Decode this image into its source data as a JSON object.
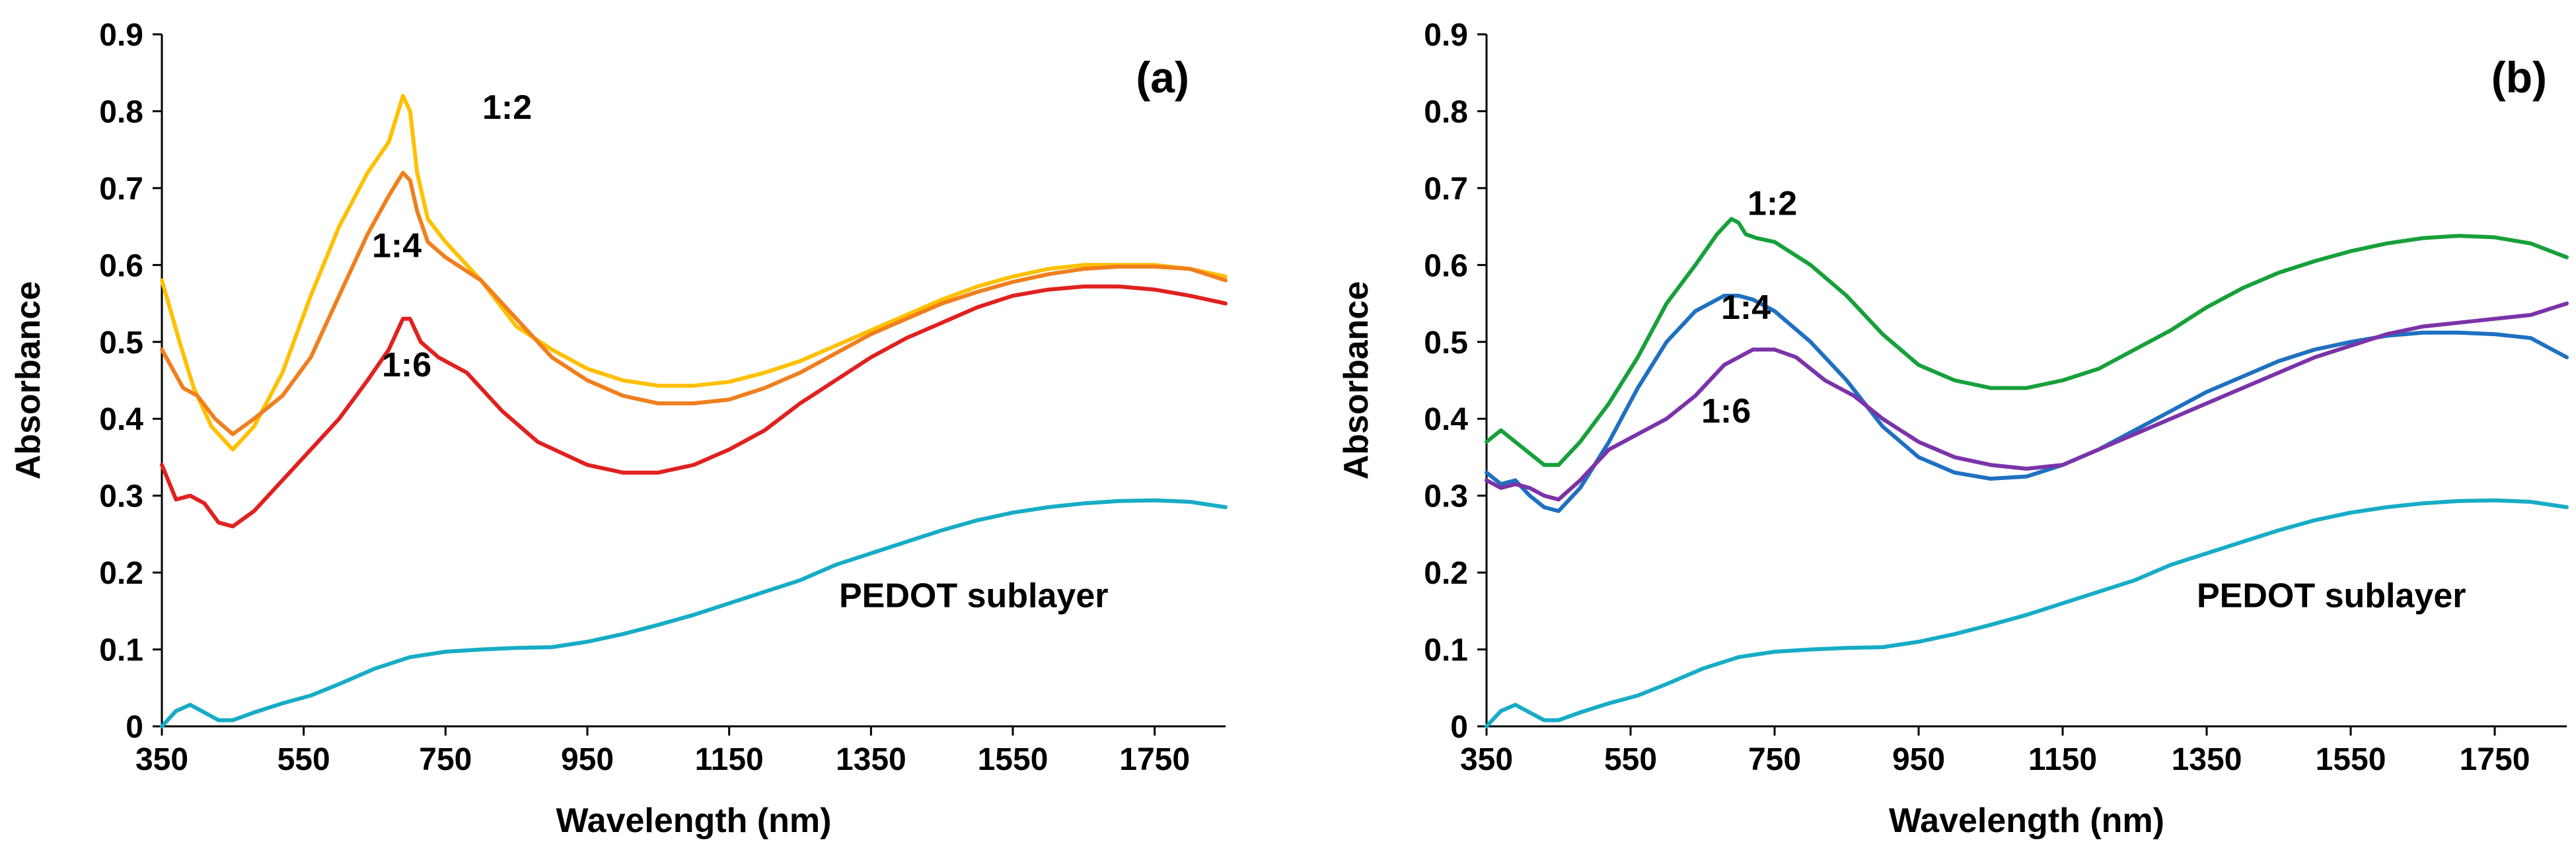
{
  "chart_data": [
    {
      "type": "line",
      "panel_label": "(a)",
      "xlabel": "Wavelength (nm)",
      "ylabel": "Absorbance",
      "xlim": [
        350,
        1850
      ],
      "ylim": [
        0,
        0.9
      ],
      "x_ticks": [
        350,
        550,
        750,
        950,
        1150,
        1350,
        1550,
        1750
      ],
      "y_ticks": [
        0,
        0.1,
        0.2,
        0.3,
        0.4,
        0.5,
        0.6,
        0.7,
        0.8,
        0.9
      ],
      "grid": false,
      "series": [
        {
          "name": "1:2",
          "label": "1:2",
          "color": "#FFC000",
          "x": [
            350,
            375,
            395,
            420,
            450,
            480,
            520,
            560,
            600,
            640,
            670,
            690,
            700,
            710,
            725,
            750,
            800,
            850,
            900,
            950,
            1000,
            1050,
            1100,
            1150,
            1200,
            1250,
            1300,
            1350,
            1400,
            1450,
            1500,
            1550,
            1600,
            1650,
            1700,
            1750,
            1800,
            1850
          ],
          "y": [
            0.58,
            0.5,
            0.44,
            0.39,
            0.36,
            0.39,
            0.46,
            0.56,
            0.65,
            0.72,
            0.76,
            0.82,
            0.8,
            0.72,
            0.66,
            0.63,
            0.58,
            0.52,
            0.49,
            0.465,
            0.45,
            0.443,
            0.443,
            0.448,
            0.46,
            0.475,
            0.495,
            0.515,
            0.535,
            0.555,
            0.572,
            0.585,
            0.595,
            0.6,
            0.6,
            0.6,
            0.595,
            0.585
          ]
        },
        {
          "name": "1:4",
          "label": "1:4",
          "color": "#F07F1E",
          "x": [
            350,
            380,
            400,
            425,
            450,
            480,
            520,
            560,
            600,
            640,
            670,
            690,
            700,
            710,
            725,
            750,
            800,
            850,
            900,
            950,
            1000,
            1050,
            1100,
            1150,
            1200,
            1250,
            1300,
            1350,
            1400,
            1450,
            1500,
            1550,
            1600,
            1650,
            1700,
            1750,
            1800,
            1850
          ],
          "y": [
            0.49,
            0.44,
            0.43,
            0.4,
            0.38,
            0.4,
            0.43,
            0.48,
            0.56,
            0.64,
            0.69,
            0.72,
            0.71,
            0.67,
            0.63,
            0.61,
            0.58,
            0.53,
            0.48,
            0.45,
            0.43,
            0.42,
            0.42,
            0.425,
            0.44,
            0.46,
            0.485,
            0.51,
            0.53,
            0.55,
            0.565,
            0.578,
            0.588,
            0.595,
            0.598,
            0.598,
            0.595,
            0.58
          ]
        },
        {
          "name": "1:6",
          "label": "1:6",
          "color": "#E0211F",
          "x": [
            350,
            370,
            390,
            410,
            430,
            450,
            480,
            520,
            560,
            600,
            640,
            670,
            690,
            700,
            715,
            740,
            780,
            830,
            880,
            950,
            1000,
            1050,
            1100,
            1150,
            1200,
            1250,
            1300,
            1350,
            1400,
            1450,
            1500,
            1550,
            1600,
            1650,
            1700,
            1750,
            1800,
            1850
          ],
          "y": [
            0.34,
            0.295,
            0.3,
            0.29,
            0.265,
            0.26,
            0.28,
            0.32,
            0.36,
            0.4,
            0.45,
            0.49,
            0.53,
            0.53,
            0.5,
            0.48,
            0.46,
            0.41,
            0.37,
            0.34,
            0.33,
            0.33,
            0.34,
            0.36,
            0.385,
            0.42,
            0.45,
            0.48,
            0.505,
            0.525,
            0.545,
            0.56,
            0.568,
            0.572,
            0.572,
            0.568,
            0.56,
            0.55
          ]
        },
        {
          "name": "PEDOT sublayer",
          "label": "PEDOT sublayer",
          "color": "#17ACC6",
          "x": [
            350,
            370,
            390,
            410,
            430,
            450,
            480,
            520,
            560,
            600,
            650,
            700,
            750,
            800,
            850,
            900,
            950,
            1000,
            1050,
            1100,
            1150,
            1200,
            1250,
            1300,
            1350,
            1400,
            1450,
            1500,
            1550,
            1600,
            1650,
            1700,
            1750,
            1800,
            1850
          ],
          "y": [
            0.0,
            0.02,
            0.028,
            0.018,
            0.008,
            0.008,
            0.018,
            0.03,
            0.04,
            0.055,
            0.075,
            0.09,
            0.097,
            0.1,
            0.102,
            0.103,
            0.11,
            0.12,
            0.132,
            0.145,
            0.16,
            0.175,
            0.19,
            0.21,
            0.225,
            0.24,
            0.255,
            0.268,
            0.278,
            0.285,
            0.29,
            0.293,
            0.294,
            0.292,
            0.285
          ]
        }
      ]
    },
    {
      "type": "line",
      "panel_label": "(b)",
      "xlabel": "Wavelength (nm)",
      "ylabel": "Absorbance",
      "xlim": [
        350,
        1850
      ],
      "ylim": [
        0,
        0.9
      ],
      "x_ticks": [
        350,
        550,
        750,
        950,
        1150,
        1350,
        1550,
        1750
      ],
      "y_ticks": [
        0,
        0.1,
        0.2,
        0.3,
        0.4,
        0.5,
        0.6,
        0.7,
        0.8,
        0.9
      ],
      "grid": false,
      "series": [
        {
          "name": "1:2",
          "label": "1:2",
          "color": "#17A03A",
          "x": [
            350,
            370,
            390,
            410,
            430,
            450,
            480,
            520,
            560,
            600,
            640,
            670,
            690,
            700,
            710,
            725,
            750,
            800,
            850,
            900,
            950,
            1000,
            1050,
            1100,
            1150,
            1200,
            1250,
            1300,
            1350,
            1400,
            1450,
            1500,
            1550,
            1600,
            1650,
            1700,
            1750,
            1800,
            1850
          ],
          "y": [
            0.37,
            0.385,
            0.37,
            0.355,
            0.34,
            0.34,
            0.37,
            0.42,
            0.48,
            0.55,
            0.6,
            0.64,
            0.66,
            0.655,
            0.64,
            0.635,
            0.63,
            0.6,
            0.56,
            0.51,
            0.47,
            0.45,
            0.44,
            0.44,
            0.45,
            0.465,
            0.49,
            0.515,
            0.545,
            0.57,
            0.59,
            0.605,
            0.618,
            0.628,
            0.635,
            0.638,
            0.636,
            0.628,
            0.61
          ]
        },
        {
          "name": "1:4",
          "label": "1:4",
          "color": "#1F70C1",
          "x": [
            350,
            370,
            390,
            410,
            430,
            450,
            480,
            520,
            560,
            600,
            640,
            680,
            700,
            720,
            750,
            800,
            850,
            900,
            950,
            1000,
            1050,
            1100,
            1150,
            1200,
            1250,
            1300,
            1350,
            1400,
            1450,
            1500,
            1550,
            1600,
            1650,
            1700,
            1750,
            1800,
            1850
          ],
          "y": [
            0.33,
            0.315,
            0.32,
            0.3,
            0.285,
            0.28,
            0.31,
            0.37,
            0.44,
            0.5,
            0.54,
            0.56,
            0.56,
            0.555,
            0.54,
            0.5,
            0.45,
            0.39,
            0.35,
            0.33,
            0.322,
            0.325,
            0.34,
            0.36,
            0.385,
            0.41,
            0.435,
            0.455,
            0.475,
            0.49,
            0.5,
            0.508,
            0.512,
            0.512,
            0.51,
            0.505,
            0.48
          ]
        },
        {
          "name": "1:6",
          "label": "1:6",
          "color": "#7B33A8",
          "x": [
            350,
            370,
            390,
            410,
            430,
            450,
            480,
            520,
            560,
            600,
            640,
            680,
            720,
            750,
            780,
            820,
            860,
            900,
            950,
            1000,
            1050,
            1100,
            1150,
            1200,
            1250,
            1300,
            1350,
            1400,
            1450,
            1500,
            1550,
            1600,
            1650,
            1700,
            1750,
            1800,
            1850
          ],
          "y": [
            0.32,
            0.31,
            0.315,
            0.31,
            0.3,
            0.295,
            0.32,
            0.36,
            0.38,
            0.4,
            0.43,
            0.47,
            0.49,
            0.49,
            0.48,
            0.45,
            0.43,
            0.4,
            0.37,
            0.35,
            0.34,
            0.335,
            0.34,
            0.36,
            0.38,
            0.4,
            0.42,
            0.44,
            0.46,
            0.48,
            0.495,
            0.51,
            0.52,
            0.525,
            0.53,
            0.535,
            0.55
          ]
        },
        {
          "name": "PEDOT sublayer",
          "label": "PEDOT sublayer",
          "color": "#17ACC6",
          "x": [
            350,
            370,
            390,
            410,
            430,
            450,
            480,
            520,
            560,
            600,
            650,
            700,
            750,
            800,
            850,
            900,
            950,
            1000,
            1050,
            1100,
            1150,
            1200,
            1250,
            1300,
            1350,
            1400,
            1450,
            1500,
            1550,
            1600,
            1650,
            1700,
            1750,
            1800,
            1850
          ],
          "y": [
            0.0,
            0.02,
            0.028,
            0.018,
            0.008,
            0.008,
            0.018,
            0.03,
            0.04,
            0.055,
            0.075,
            0.09,
            0.097,
            0.1,
            0.102,
            0.103,
            0.11,
            0.12,
            0.132,
            0.145,
            0.16,
            0.175,
            0.19,
            0.21,
            0.225,
            0.24,
            0.255,
            0.268,
            0.278,
            0.285,
            0.29,
            0.293,
            0.294,
            0.292,
            0.285
          ]
        }
      ]
    }
  ]
}
